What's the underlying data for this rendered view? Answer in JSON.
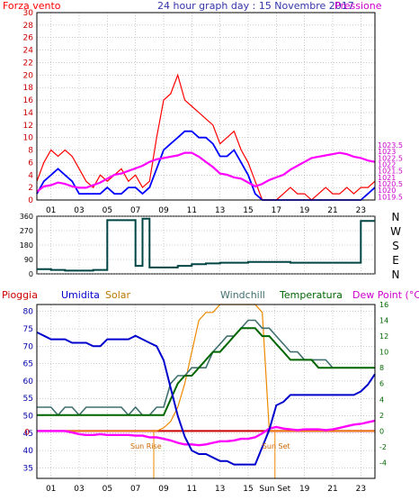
{
  "colors": {
    "wind": "#ff0000",
    "wind_avg": "#0000ff",
    "pressure": "#ff00ff",
    "direction": "#004444",
    "rain": "#cc0000",
    "humidity": "#0000cc",
    "solar": "#ee8800",
    "windchill": "#407070",
    "temperature": "#006600",
    "dewpoint": "#ff00ff",
    "zero_line": "#cc0000",
    "frame": "#000000",
    "grid": "#999999"
  },
  "icons": {
    "sun_rise": "sun-rise-marker",
    "sun_set": "sun-set-marker"
  },
  "chart_data": [
    {
      "type": "line",
      "title": "24 hour graph day : 15 Novembre 2017",
      "left_label": "Forza vento",
      "right_label": "Pressione",
      "x_tick_labels": [
        "01",
        "03",
        "05",
        "07",
        "09",
        "11",
        "13",
        "15",
        "17",
        "19",
        "21",
        "23"
      ],
      "x_ticks": [
        1,
        3,
        5,
        7,
        9,
        11,
        13,
        15,
        17,
        19,
        21,
        23
      ],
      "xlim": [
        0,
        24
      ],
      "ylim_left": [
        0,
        30
      ],
      "yticks_left": [
        0,
        2,
        4,
        6,
        8,
        10,
        12,
        14,
        16,
        18,
        20,
        22,
        24,
        26,
        28,
        30
      ],
      "ylim_right": [
        1019.25,
        1033.75
      ],
      "yticks_right_labels": [
        "1019.5",
        "1020",
        "1020.5",
        "1021",
        "1021.5",
        "1022",
        "1022.5",
        "1023",
        "1023.5"
      ],
      "yticks_right": [
        1019.5,
        1020,
        1020.5,
        1021,
        1021.5,
        1022,
        1022.5,
        1023,
        1023.5
      ],
      "x": [
        0,
        0.5,
        1,
        1.5,
        2,
        2.5,
        3,
        3.5,
        4,
        4.5,
        5,
        5.5,
        6,
        6.5,
        7,
        7.5,
        8,
        8.5,
        9,
        9.5,
        10,
        10.5,
        11,
        11.5,
        12,
        12.5,
        13,
        13.5,
        14,
        14.5,
        15,
        15.5,
        16,
        16.5,
        17,
        17.5,
        18,
        18.5,
        19,
        19.5,
        20,
        20.5,
        21,
        21.5,
        22,
        22.5,
        23,
        23.5,
        24
      ],
      "series": [
        {
          "values": [
            3,
            6,
            8,
            7,
            8,
            7,
            5,
            3,
            2,
            4,
            3,
            4,
            5,
            3,
            4,
            2,
            3,
            10,
            16,
            17,
            20,
            16,
            15,
            14,
            13,
            12,
            9,
            10,
            11,
            8,
            6,
            3,
            0,
            0,
            0,
            1,
            2,
            1,
            1,
            0,
            1,
            2,
            1,
            1,
            2,
            1,
            2,
            2,
            3
          ]
        },
        {
          "values": [
            1,
            3,
            4,
            5,
            4,
            3,
            1,
            1,
            1,
            1,
            2,
            1,
            1,
            2,
            2,
            1,
            2,
            5,
            8,
            9,
            10,
            11,
            11,
            10,
            10,
            9,
            7,
            7,
            8,
            6,
            4,
            1,
            0,
            0,
            0,
            0,
            0,
            0,
            0,
            0,
            0,
            0,
            0,
            0,
            0,
            0,
            0,
            1,
            2
          ]
        },
        {
          "values": [
            1019.9,
            1020.3,
            1020.4,
            1020.6,
            1020.5,
            1020.3,
            1020.2,
            1020.2,
            1020.4,
            1020.6,
            1020.9,
            1021.2,
            1021.3,
            1021.5,
            1021.7,
            1021.9,
            1022.2,
            1022.4,
            1022.5,
            1022.6,
            1022.7,
            1022.9,
            1022.9,
            1022.6,
            1022.2,
            1021.8,
            1021.3,
            1021.2,
            1021.0,
            1020.9,
            1020.6,
            1020.3,
            1020.5,
            1020.8,
            1021.0,
            1021.2,
            1021.6,
            1021.9,
            1022.2,
            1022.5,
            1022.6,
            1022.7,
            1022.8,
            1022.9,
            1022.8,
            1022.6,
            1022.5,
            1022.3,
            1022.2
          ]
        }
      ]
    },
    {
      "type": "line",
      "title": "",
      "right_labels": [
        "N",
        "W",
        "S",
        "E",
        "N"
      ],
      "xlim": [
        0,
        24
      ],
      "ylim": [
        0,
        360
      ],
      "yticks": [
        0,
        90,
        180,
        270,
        360
      ],
      "x": [
        0,
        1,
        2,
        3,
        4,
        5,
        6,
        7,
        7.5,
        8,
        9,
        10,
        11,
        12,
        13,
        14,
        15,
        16,
        17,
        18,
        19,
        20,
        21,
        22,
        23,
        24
      ],
      "series": [
        {
          "values": [
            30,
            25,
            20,
            20,
            25,
            335,
            335,
            50,
            345,
            40,
            40,
            50,
            60,
            65,
            70,
            70,
            75,
            75,
            75,
            70,
            70,
            70,
            70,
            70,
            330,
            330
          ]
        }
      ]
    },
    {
      "type": "line",
      "title": "",
      "legend": [
        "Pioggia",
        "Umidita",
        "Solar",
        "Windchill",
        "Temperatura",
        "Dew Point (°C)"
      ],
      "annotations": [
        "Sun Rise",
        "Sun Set"
      ],
      "x_tick_labels": [
        "01",
        "03",
        "05",
        "07",
        "09",
        "11",
        "13",
        "15",
        "Sun Set",
        "19",
        "21",
        "23"
      ],
      "x_ticks": [
        1,
        3,
        5,
        7,
        9,
        11,
        13,
        15,
        16.9,
        19,
        21,
        23
      ],
      "xlim": [
        0,
        24
      ],
      "ylim_left": [
        32,
        82
      ],
      "yticks_left": [
        35,
        40,
        45,
        50,
        55,
        60,
        65,
        70,
        75,
        80
      ],
      "ylim_right": [
        -6,
        16
      ],
      "yticks_right": [
        -4,
        -2,
        0,
        2,
        4,
        6,
        8,
        10,
        12,
        14,
        16
      ],
      "zero_marker": "0",
      "sun_rise_x": 8.3,
      "sun_set_x": 16.9,
      "x": [
        0,
        0.5,
        1,
        1.5,
        2,
        2.5,
        3,
        3.5,
        4,
        4.5,
        5,
        5.5,
        6,
        6.5,
        7,
        7.5,
        8,
        8.5,
        9,
        9.5,
        10,
        10.5,
        11,
        11.5,
        12,
        12.5,
        13,
        13.5,
        14,
        14.5,
        15,
        15.5,
        16,
        16.5,
        17,
        17.5,
        18,
        18.5,
        19,
        19.5,
        20,
        20.5,
        21,
        21.5,
        22,
        22.5,
        23,
        23.5,
        24
      ],
      "series": [
        {
          "values": [
            74,
            73,
            72,
            72,
            72,
            71,
            71,
            71,
            70,
            70,
            72,
            72,
            72,
            72,
            73,
            72,
            71,
            70,
            66,
            58,
            50,
            44,
            40,
            39,
            39,
            38,
            37,
            37,
            36,
            36,
            36,
            36,
            41,
            46,
            53,
            54,
            56,
            56,
            56,
            56,
            56,
            56,
            56,
            56,
            56,
            56,
            57,
            59,
            62
          ]
        },
        {
          "values": [
            3,
            3,
            3,
            2,
            3,
            3,
            2,
            3,
            3,
            3,
            3,
            3,
            3,
            2,
            3,
            2,
            2,
            3,
            3,
            6,
            7,
            7,
            8,
            8,
            8,
            10,
            11,
            12,
            12,
            13,
            14,
            14,
            13,
            13,
            12,
            11,
            10,
            10,
            9,
            9,
            9,
            9,
            8,
            8,
            8,
            8,
            8,
            8,
            8
          ]
        },
        {
          "values": [
            2,
            2,
            2,
            2,
            2,
            2,
            2,
            2,
            2,
            2,
            2,
            2,
            2,
            2,
            2,
            2,
            2,
            2,
            2,
            4,
            6,
            7,
            7,
            8,
            9,
            10,
            10,
            11,
            12,
            13,
            13,
            13,
            12,
            12,
            11,
            10,
            9,
            9,
            9,
            9,
            8,
            8,
            8,
            8,
            8,
            8,
            8,
            8,
            8
          ]
        },
        {
          "values": [
            0,
            0,
            0,
            0,
            0,
            -0.2,
            -0.4,
            -0.5,
            -0.5,
            -0.4,
            -0.5,
            -0.5,
            -0.5,
            -0.5,
            -0.6,
            -0.6,
            -0.8,
            -0.8,
            -1,
            -1.2,
            -1.5,
            -1.7,
            -1.7,
            -1.8,
            -1.7,
            -1.5,
            -1.3,
            -1.3,
            -1.2,
            -1.0,
            -1.0,
            -0.8,
            -0.3,
            0.3,
            0.5,
            0.3,
            0.2,
            0.1,
            0.2,
            0.2,
            0.2,
            0.1,
            0.2,
            0.4,
            0.6,
            0.8,
            0.9,
            1.1,
            1.3
          ]
        },
        {
          "values": [
            0,
            0,
            0,
            0,
            0,
            0,
            0,
            0,
            0,
            0,
            0,
            0,
            0,
            0,
            0,
            0,
            0,
            0,
            0.4,
            1.2,
            3,
            6,
            10,
            14,
            15,
            15,
            16,
            16,
            16,
            16,
            16,
            16,
            15,
            0,
            0,
            0,
            0,
            0,
            0,
            0,
            0,
            0,
            0,
            0,
            0,
            0,
            0,
            0,
            0
          ]
        }
      ]
    }
  ]
}
